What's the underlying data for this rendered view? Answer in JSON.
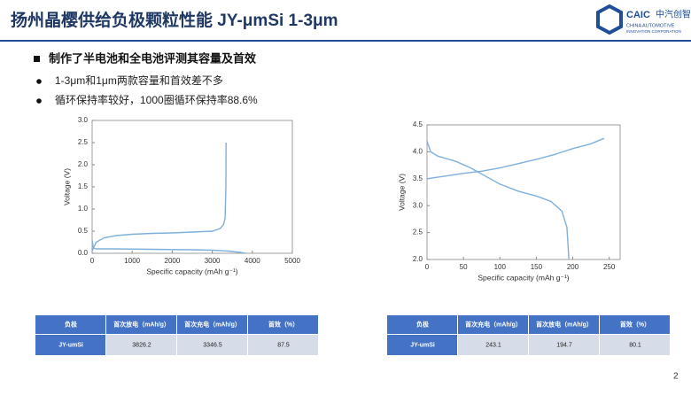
{
  "header": {
    "title": "扬州晶樱供给负极颗粒性能 JY-μmSi 1-3μm",
    "logo_mark": "CAIC",
    "logo_cn": "中汽创智",
    "logo_en1": "CHINA AUTOMOTIVE",
    "logo_en2": "INNOVATION CORPORATION"
  },
  "section": "制作了半电池和全电池评测其容量及首效",
  "bullets": [
    "1-3μm和1μm两款容量和首效差不多",
    "循环保持率较好，1000圈循环保持率88.6%"
  ],
  "chart_data": [
    {
      "type": "line",
      "xlabel": "Specific capacity (mAh g⁻¹)",
      "ylabel": "Voltage (V)",
      "xlim": [
        0,
        5000
      ],
      "xticks": [
        0,
        1000,
        2000,
        3000,
        4000,
        5000
      ],
      "ylim": [
        0,
        3
      ],
      "yticks": [
        {
          "value": 0,
          "label": "0.0"
        },
        {
          "value": 0.5,
          "label": "0.5"
        },
        {
          "value": 1,
          "label": "1.0"
        },
        {
          "value": 1.5,
          "label": "1.5"
        },
        {
          "value": 2,
          "label": "2.0"
        },
        {
          "value": 2.5,
          "label": "2.5"
        },
        {
          "value": 3,
          "label": "3.0"
        }
      ],
      "series": [
        {
          "color": "#7fb0dc",
          "x": [
            0,
            30,
            100,
            500,
            1500,
            2500,
            3000,
            3400,
            3700,
            3826
          ],
          "values": [
            0.3,
            0.12,
            0.1,
            0.1,
            0.09,
            0.08,
            0.07,
            0.05,
            0.02,
            0.0
          ]
        },
        {
          "color": "#7fb0dc",
          "x": [
            0,
            100,
            300,
            600,
            1000,
            1500,
            2000,
            2500,
            3000,
            3200,
            3280,
            3320,
            3340,
            3346
          ],
          "values": [
            0.05,
            0.25,
            0.35,
            0.4,
            0.43,
            0.45,
            0.46,
            0.48,
            0.5,
            0.56,
            0.65,
            0.8,
            1.5,
            2.5
          ]
        }
      ]
    },
    {
      "type": "line",
      "xlabel": "Specific capacity (mAh g⁻¹)",
      "ylabel": "Voltage (V)",
      "xlim": [
        0,
        265
      ],
      "xticks": [
        0,
        50,
        100,
        150,
        200,
        250
      ],
      "ylim": [
        2,
        4.5
      ],
      "yticks": [
        {
          "value": 2,
          "label": "2.0"
        },
        {
          "value": 2.5,
          "label": "2.5"
        },
        {
          "value": 3,
          "label": "3.0"
        },
        {
          "value": 3.5,
          "label": "3.5"
        },
        {
          "value": 4,
          "label": "4.0"
        },
        {
          "value": 4.5,
          "label": "4.5"
        }
      ],
      "series": [
        {
          "color": "#7fb0dc",
          "x": [
            0,
            25,
            50,
            75,
            100,
            125,
            150,
            175,
            200,
            225,
            243
          ],
          "values": [
            3.5,
            3.55,
            3.6,
            3.64,
            3.7,
            3.78,
            3.86,
            3.95,
            4.06,
            4.15,
            4.25
          ]
        },
        {
          "color": "#7fb0dc",
          "x": [
            0,
            5,
            15,
            40,
            60,
            80,
            100,
            125,
            150,
            170,
            185,
            192,
            194.7
          ],
          "values": [
            4.2,
            4.0,
            3.92,
            3.82,
            3.7,
            3.55,
            3.4,
            3.27,
            3.18,
            3.08,
            2.9,
            2.6,
            2.0
          ]
        }
      ]
    }
  ],
  "tables": [
    {
      "header": [
        "负极",
        "首次放电（mAh/g）",
        "首次充电（mAh/g）",
        "首效（%）"
      ],
      "rows": [
        [
          "JY-umSi",
          3826.2,
          3346.5,
          87.5
        ]
      ]
    },
    {
      "header": [
        "负极",
        "首次充电（mAh/g）",
        "首次放电（mAh/g）",
        "首效（%）"
      ],
      "rows": [
        [
          "JY-umSi",
          243.1,
          194.7,
          80.1
        ]
      ]
    }
  ],
  "page_number": 2
}
